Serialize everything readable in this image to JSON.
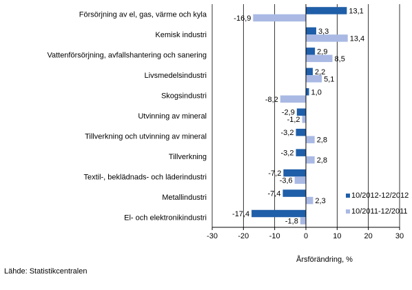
{
  "source_note": "Lähde: Statistikcentralen",
  "chart_data": {
    "type": "bar",
    "orientation": "horizontal",
    "categories": [
      "Försörjning av el, gas, värme och kyla",
      "Kemisk industri",
      "Vattenförsörjning, avfallshantering och sanering",
      "Livsmedelsindustri",
      "Skogsindustri",
      "Utvinning av mineral",
      "Tillverkning och utvinning av mineral",
      "Tillverkning",
      "Textil-, beklädnads- och läderindustri",
      "Metallindustri",
      "El- och elektronikindustri"
    ],
    "series": [
      {
        "name": "10/2012-12/2012",
        "color": "#1f5ea8",
        "values": [
          13.1,
          3.3,
          2.9,
          2.2,
          1.0,
          -2.9,
          -3.2,
          -3.2,
          -7.2,
          -7.4,
          -17.4
        ]
      },
      {
        "name": "10/2011-12/2011",
        "color": "#a9b9e4",
        "values": [
          -16.9,
          13.4,
          8.5,
          5.1,
          -8.2,
          -1.2,
          2.8,
          2.8,
          -3.6,
          2.3,
          -1.8
        ]
      }
    ],
    "value_labels": [
      [
        "13,1",
        "3,3",
        "2,9",
        "2,2",
        "1,0",
        "-2,9",
        "-3,2",
        "-3,2",
        "-7,2",
        "-7,4",
        "-17,4"
      ],
      [
        "-16,9",
        "13,4",
        "8,5",
        "5,1",
        "-8,2",
        "-1,2",
        "2,8",
        "2,8",
        "-3,6",
        "2,3",
        "-1,8"
      ]
    ],
    "xlim": [
      -30,
      30
    ],
    "xticks": [
      -30,
      -20,
      -10,
      0,
      10,
      20,
      30
    ],
    "xtick_labels": [
      "-30",
      "-20",
      "-10",
      "0",
      "10",
      "20",
      "30"
    ],
    "xlabel": "Årsförändring, %",
    "title": "",
    "ylabel": "",
    "grid": "vertical",
    "legend_position": "right"
  }
}
